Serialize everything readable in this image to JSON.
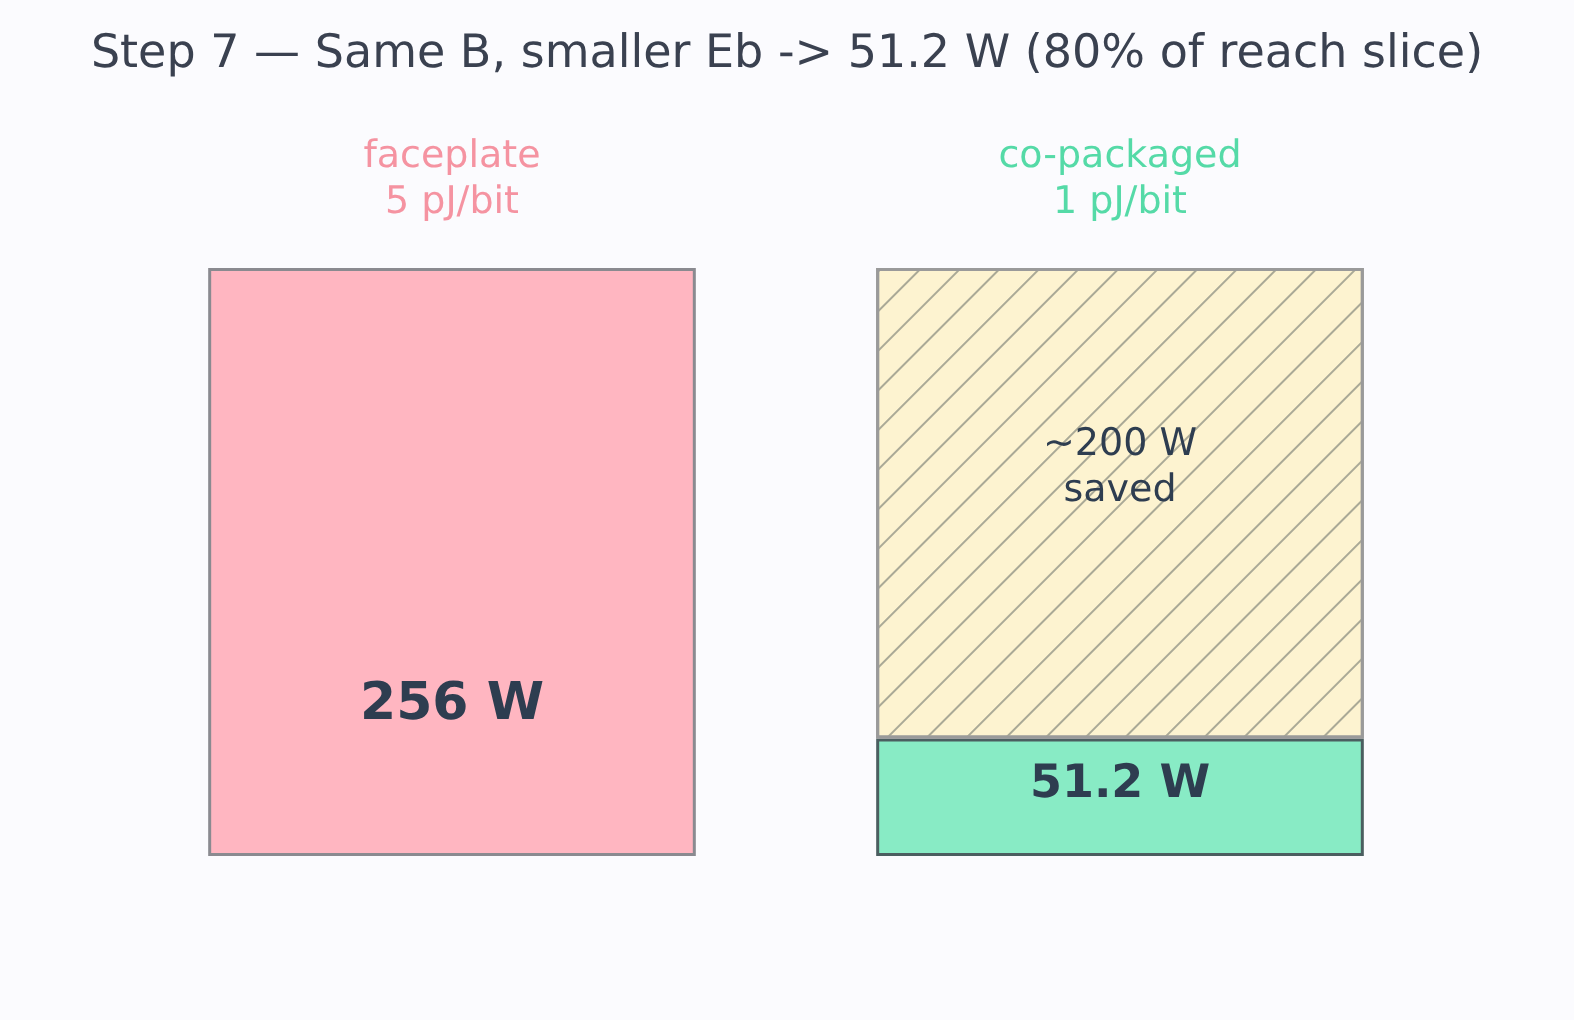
{
  "chart_data": {
    "type": "bar",
    "title": "Step 7 — Same B, smaller Eb -> 51.2 W (80% of reach slice)",
    "categories": [
      "faceplate\n5 pJ/bit",
      "co-packaged\n1 pJ/bit"
    ],
    "stacked": true,
    "series": [
      {
        "colors": [
          "#ffb6c1",
          "#88ebc5"
        ],
        "values": [
          256,
          51.2
        ],
        "value_labels": [
          "256 W",
          "51.2 W"
        ]
      },
      {
        "color": "#fdf3d0",
        "values": [
          null,
          204.8
        ]
      }
    ],
    "annotations": [
      "~200 W\nsaved"
    ]
  }
}
